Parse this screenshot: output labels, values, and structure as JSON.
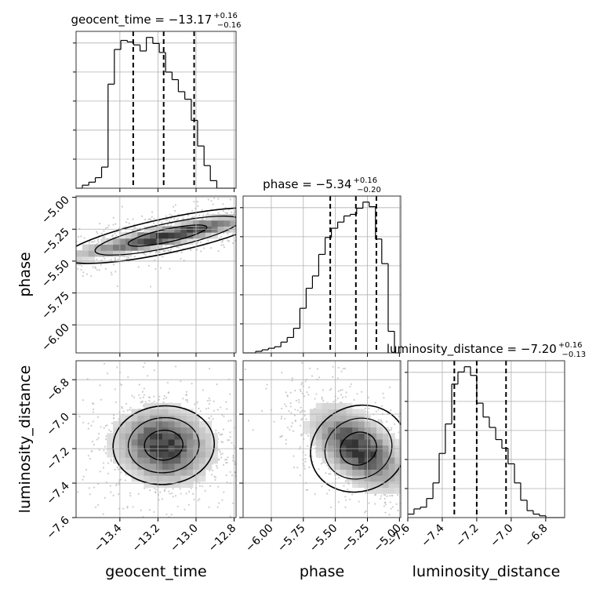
{
  "chart_data": [
    {
      "type": "histogram",
      "panel": "geocent_time marginal",
      "title": {
        "text": "geocent_time = −13.17",
        "sup": "+0.16",
        "sub": "−0.16"
      },
      "x": {
        "label": "geocent_time",
        "lim": [
          -13.63,
          -12.79
        ],
        "ticks": [
          -13.4,
          -13.2,
          -13.0,
          -12.8
        ],
        "tick_labels": [
          "−13.4",
          "−13.2",
          "−13.0",
          "−12.8"
        ]
      },
      "bins": [
        -13.63,
        -13.597,
        -13.563,
        -13.529,
        -13.496,
        -13.462,
        -13.429,
        -13.395,
        -13.361,
        -13.328,
        -13.294,
        -13.261,
        -13.227,
        -13.193,
        -13.16,
        -13.126,
        -13.093,
        -13.059,
        -13.025,
        -12.992,
        -12.958,
        -12.925,
        -12.891,
        -12.857,
        -12.824,
        -12.79
      ],
      "counts": [
        0,
        2,
        4,
        7,
        14,
        69,
        92,
        98,
        97,
        95,
        91,
        100,
        96,
        90,
        77,
        72,
        64,
        59,
        45,
        28,
        15,
        5,
        0,
        0,
        0
      ],
      "quantiles": [
        -13.33,
        -13.17,
        -13.01
      ]
    },
    {
      "type": "histogram",
      "panel": "phase marginal",
      "title": {
        "text": "phase = −5.34",
        "sup": "+0.16",
        "sub": "−0.20"
      },
      "x": {
        "label": "phase",
        "lim": [
          -6.22,
          -4.99
        ],
        "ticks": [
          -6.0,
          -5.75,
          -5.5,
          -5.25,
          -5.0
        ],
        "tick_labels": [
          "−6.00",
          "−5.75",
          "−5.50",
          "−5.25",
          "−5.00"
        ]
      },
      "bins": [
        -6.22,
        -6.171,
        -6.122,
        -6.072,
        -6.023,
        -5.974,
        -5.925,
        -5.876,
        -5.826,
        -5.777,
        -5.728,
        -5.679,
        -5.63,
        -5.58,
        -5.531,
        -5.482,
        -5.433,
        -5.384,
        -5.334,
        -5.285,
        -5.236,
        -5.187,
        -5.138,
        -5.088,
        -5.039,
        -4.99
      ],
      "counts": [
        0,
        0,
        1,
        2,
        3,
        4,
        7,
        10,
        16,
        29,
        42,
        50,
        64,
        75,
        81,
        85,
        89,
        90,
        94,
        98,
        95,
        74,
        58,
        14,
        0
      ],
      "quantiles": [
        -5.54,
        -5.34,
        -5.18
      ]
    },
    {
      "type": "histogram",
      "panel": "luminosity_distance marginal",
      "title": {
        "text": "luminosity_distance = −7.20",
        "sup": "+0.16",
        "sub": "−0.13"
      },
      "x": {
        "label": "luminosity_distance",
        "lim": [
          -7.6,
          -6.69
        ],
        "ticks": [
          -7.6,
          -7.4,
          -7.2,
          -7.0,
          -6.8
        ],
        "tick_labels": [
          "−7.6",
          "−7.4",
          "−7.2",
          "−7.0",
          "−6.8"
        ]
      },
      "bins": [
        -7.6,
        -7.564,
        -7.527,
        -7.491,
        -7.454,
        -7.418,
        -7.382,
        -7.345,
        -7.309,
        -7.272,
        -7.236,
        -7.2,
        -7.163,
        -7.127,
        -7.09,
        -7.054,
        -7.018,
        -6.981,
        -6.945,
        -6.908,
        -6.872,
        -6.836,
        -6.799,
        -6.763,
        -6.726,
        -6.69
      ],
      "counts": [
        2,
        5,
        6,
        11,
        20,
        37,
        54,
        77,
        84,
        87,
        82,
        66,
        58,
        52,
        45,
        40,
        31,
        20,
        10,
        4,
        2,
        1,
        0,
        0,
        0
      ],
      "quantiles": [
        -7.33,
        -7.2,
        -7.03
      ]
    },
    {
      "type": "contour",
      "panel": "phase vs geocent_time",
      "x": {
        "lim": [
          -13.63,
          -12.79
        ],
        "ticks": [
          -13.4,
          -13.2,
          -13.0,
          -12.8
        ]
      },
      "y": {
        "label": "phase",
        "lim": [
          -6.22,
          -4.99
        ],
        "ticks": [
          -5.0,
          -5.25,
          -5.5,
          -5.75,
          -6.0
        ],
        "tick_labels": [
          "−5.00",
          "−5.25",
          "−5.50",
          "−5.75",
          "−6.00"
        ]
      },
      "density": {
        "mode": "ridge",
        "slope": 1.6,
        "center": [
          -13.15,
          -5.3
        ],
        "spread_along": 0.3,
        "spread_across": 0.04
      }
    },
    {
      "type": "contour",
      "panel": "luminosity_distance vs geocent_time",
      "x": {
        "label": "geocent_time",
        "lim": [
          -13.63,
          -12.79
        ],
        "ticks": [
          -13.4,
          -13.2,
          -13.0,
          -12.8
        ],
        "tick_labels": [
          "−13.4",
          "−13.2",
          "−13.0",
          "−12.8"
        ]
      },
      "y": {
        "label": "luminosity_distance",
        "lim": [
          -7.6,
          -6.69
        ],
        "ticks": [
          -6.8,
          -7.0,
          -7.2,
          -7.4,
          -7.6
        ],
        "tick_labels": [
          "−6.8",
          "−7.0",
          "−7.2",
          "−7.4",
          "−7.6"
        ]
      },
      "density": {
        "mode": "blob",
        "center": [
          -13.17,
          -7.18
        ],
        "sx": 0.14,
        "sy": 0.12,
        "rho": -0.1
      }
    },
    {
      "type": "contour",
      "panel": "luminosity_distance vs phase",
      "x": {
        "label": "phase",
        "lim": [
          -6.22,
          -4.99
        ],
        "ticks": [
          -6.0,
          -5.75,
          -5.5,
          -5.25,
          -5.0
        ],
        "tick_labels": [
          "−6.00",
          "−5.75",
          "−5.50",
          "−5.25",
          "−5.00"
        ]
      },
      "y": {
        "lim": [
          -7.6,
          -6.69
        ],
        "ticks": [
          -6.8,
          -7.0,
          -7.2,
          -7.4,
          -7.6
        ]
      },
      "density": {
        "mode": "blob",
        "center": [
          -5.32,
          -7.2
        ],
        "sx": 0.2,
        "sy": 0.13,
        "rho": -0.55
      }
    }
  ]
}
